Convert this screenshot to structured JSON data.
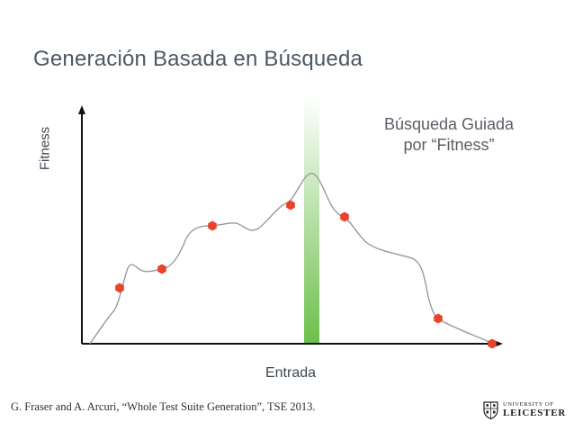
{
  "slide": {
    "title": "Generación Basada en Búsqueda",
    "citation": "G. Fraser and A. Arcuri, “Whole Test Suite Generation”, TSE 2013.",
    "logo": {
      "line1": "UNIVERSITY OF",
      "line2": "LEICESTER"
    }
  },
  "diagram": {
    "y_axis_label": "Fitness",
    "x_axis_label": "Entrada",
    "annotation_line1": "Búsqueda Guiada",
    "annotation_line2": "por “Fitness”",
    "highlight_color": "#6cbf4a",
    "marker_color": "#e8442b",
    "curve_color": "#9a9a9a"
  }
}
